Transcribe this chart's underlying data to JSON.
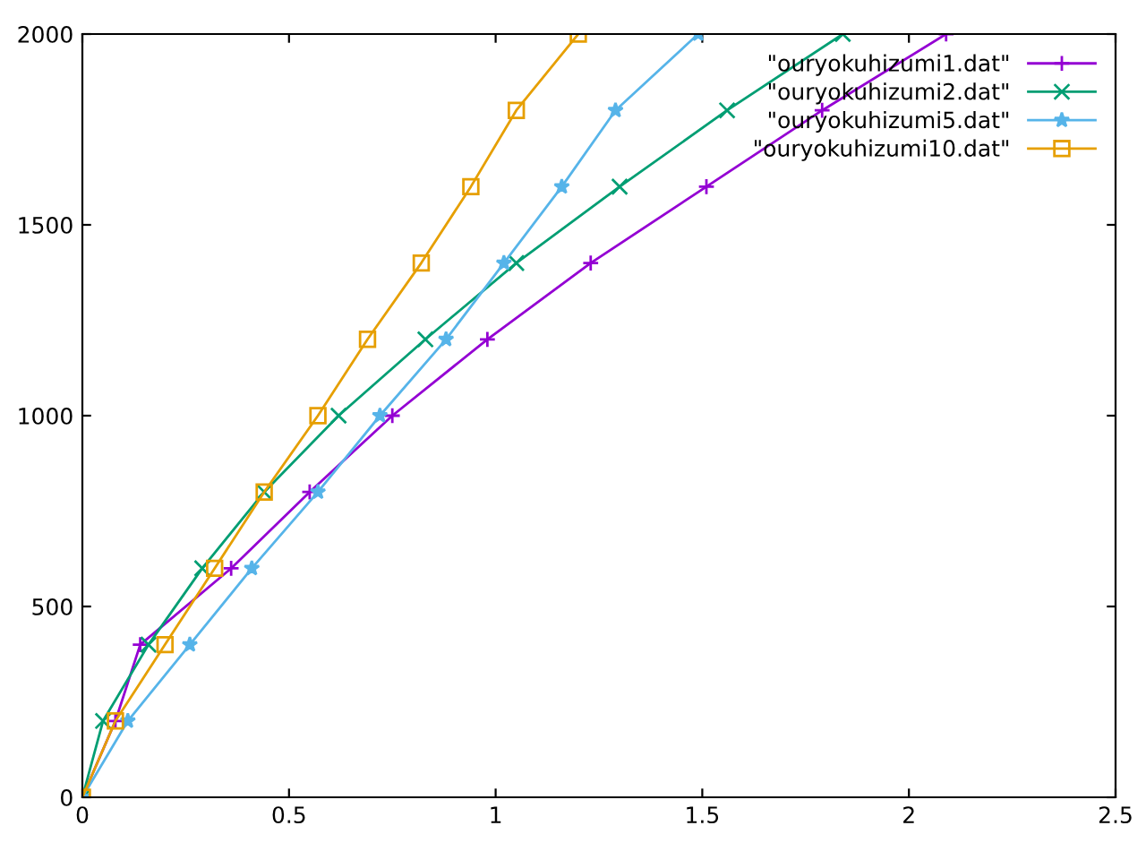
{
  "chart_data": {
    "type": "line",
    "xlim": [
      0,
      2.5
    ],
    "ylim": [
      0,
      2000
    ],
    "xticks": [
      0,
      0.5,
      1,
      1.5,
      2,
      2.5
    ],
    "yticks": [
      0,
      500,
      1000,
      1500,
      2000
    ],
    "grid": false,
    "legend": "top right",
    "series": [
      {
        "name": "\"ouryokuhizumi1.dat\"",
        "color": "#9400d3",
        "marker": "plus",
        "x": [
          0,
          0.08,
          0.14,
          0.36,
          0.55,
          0.75,
          0.98,
          1.23,
          1.51,
          1.79,
          2.09
        ],
        "values": [
          0,
          200,
          400,
          600,
          800,
          1000,
          1200,
          1400,
          1600,
          1800,
          2000
        ]
      },
      {
        "name": "\"ouryokuhizumi2.dat\"",
        "color": "#009e73",
        "marker": "cross",
        "x": [
          0,
          0.05,
          0.16,
          0.29,
          0.44,
          0.62,
          0.83,
          1.05,
          1.3,
          1.56,
          1.84
        ],
        "values": [
          0,
          200,
          400,
          600,
          800,
          1000,
          1200,
          1400,
          1600,
          1800,
          2000
        ]
      },
      {
        "name": "\"ouryokuhizumi5.dat\"",
        "color": "#56b4e9",
        "marker": "star",
        "x": [
          0,
          0.11,
          0.26,
          0.41,
          0.57,
          0.72,
          0.88,
          1.02,
          1.16,
          1.29,
          1.49
        ],
        "values": [
          0,
          200,
          400,
          600,
          800,
          1000,
          1200,
          1400,
          1600,
          1800,
          2000
        ]
      },
      {
        "name": "\"ouryokuhizumi10.dat\"",
        "color": "#e69f00",
        "marker": "square",
        "x": [
          0,
          0.08,
          0.2,
          0.32,
          0.44,
          0.57,
          0.69,
          0.82,
          0.94,
          1.05,
          1.2
        ],
        "values": [
          0,
          200,
          400,
          600,
          800,
          1000,
          1200,
          1400,
          1600,
          1800,
          2000
        ]
      }
    ]
  }
}
